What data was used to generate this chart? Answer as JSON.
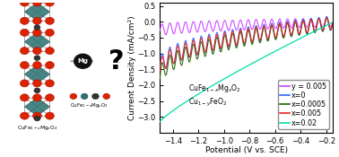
{
  "xlabel": "Potential (V vs. SCE)",
  "ylabel": "Current Density (mA/cm²)",
  "xlim": [
    -1.5,
    -0.15
  ],
  "ylim": [
    -3.5,
    0.6
  ],
  "xticks": [
    -1.4,
    -1.2,
    -1.0,
    -0.8,
    -0.6,
    -0.4,
    -0.2
  ],
  "yticks": [
    -3.0,
    -2.5,
    -2.0,
    -1.5,
    -1.0,
    -0.5,
    0.0,
    0.5
  ],
  "series": [
    {
      "label": "y = 0.005",
      "color": "#cc44ff",
      "y_left": -0.28,
      "y_right": -0.02,
      "osc_amp": 0.18,
      "power": 0.5
    },
    {
      "label": "x=0",
      "color": "#3366ff",
      "y_left": -1.5,
      "y_right": -0.04,
      "osc_amp": 0.3,
      "power": 0.45
    },
    {
      "label": "x=0.0005",
      "color": "#226600",
      "y_left": -1.8,
      "y_right": -0.05,
      "osc_amp": 0.27,
      "power": 0.45
    },
    {
      "label": "x=0.005",
      "color": "#ee2222",
      "y_left": -1.55,
      "y_right": -0.04,
      "osc_amp": 0.25,
      "power": 0.45
    },
    {
      "label": "x=0.02",
      "color": "#00ddaa",
      "y_left": -3.15,
      "y_right": -0.02,
      "osc_amp": 0.0,
      "power": 1.0
    }
  ],
  "osc_freq": 22,
  "background_color": "#ffffff",
  "legend_fontsize": 5.8,
  "axis_fontsize": 6.5,
  "tick_fontsize": 6.0,
  "left_bg_color": "#f0f0f0",
  "crystal_color_cu": "#cc2200",
  "crystal_color_fe": "#005588",
  "crystal_color_o": "#cc2200",
  "arrow_color": "#aaaaaa",
  "mg_ball_color": "#222222",
  "mg_text_color": "#ffffff"
}
